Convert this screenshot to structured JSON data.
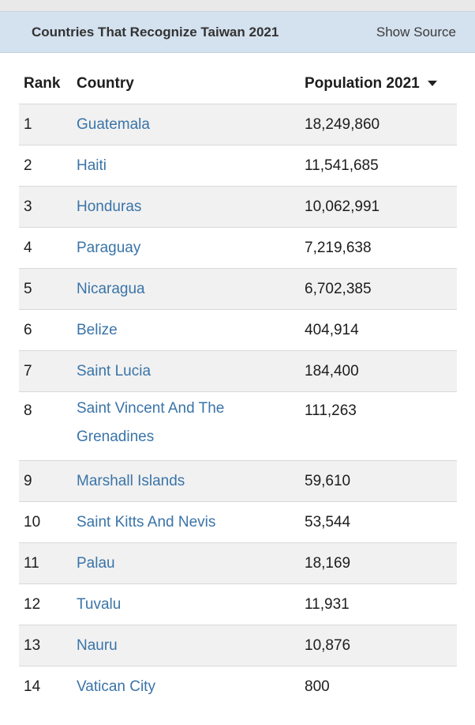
{
  "header": {
    "title": "Countries That Recognize Taiwan 2021",
    "show_source": "Show Source"
  },
  "table": {
    "columns": [
      "Rank",
      "Country",
      "Population 2021"
    ],
    "rows": [
      {
        "rank": "1",
        "country": "Guatemala",
        "population": "18,249,860"
      },
      {
        "rank": "2",
        "country": "Haiti",
        "population": "11,541,685"
      },
      {
        "rank": "3",
        "country": "Honduras",
        "population": "10,062,991"
      },
      {
        "rank": "4",
        "country": "Paraguay",
        "population": "7,219,638"
      },
      {
        "rank": "5",
        "country": "Nicaragua",
        "population": "6,702,385"
      },
      {
        "rank": "6",
        "country": "Belize",
        "population": "404,914"
      },
      {
        "rank": "7",
        "country": "Saint Lucia",
        "population": "184,400"
      },
      {
        "rank": "8",
        "country": "Saint Vincent And The Grenadines",
        "population": "111,263"
      },
      {
        "rank": "9",
        "country": "Marshall Islands",
        "population": "59,610"
      },
      {
        "rank": "10",
        "country": "Saint Kitts And Nevis",
        "population": "53,544"
      },
      {
        "rank": "11",
        "country": "Palau",
        "population": "18,169"
      },
      {
        "rank": "12",
        "country": "Tuvalu",
        "population": "11,931"
      },
      {
        "rank": "13",
        "country": "Nauru",
        "population": "10,876"
      },
      {
        "rank": "14",
        "country": "Vatican City",
        "population": "800"
      }
    ],
    "sort_icon": "caret-down-icon"
  }
}
